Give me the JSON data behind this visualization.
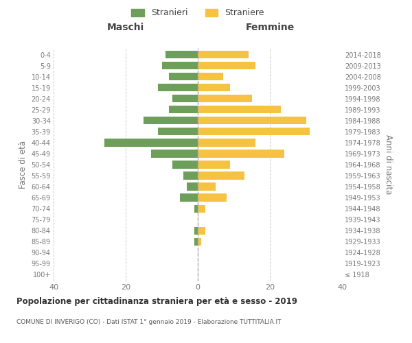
{
  "age_groups": [
    "100+",
    "95-99",
    "90-94",
    "85-89",
    "80-84",
    "75-79",
    "70-74",
    "65-69",
    "60-64",
    "55-59",
    "50-54",
    "45-49",
    "40-44",
    "35-39",
    "30-34",
    "25-29",
    "20-24",
    "15-19",
    "10-14",
    "5-9",
    "0-4"
  ],
  "birth_years": [
    "≤ 1918",
    "1919-1923",
    "1924-1928",
    "1929-1933",
    "1934-1938",
    "1939-1943",
    "1944-1948",
    "1949-1953",
    "1954-1958",
    "1959-1963",
    "1964-1968",
    "1969-1973",
    "1974-1978",
    "1979-1983",
    "1984-1988",
    "1989-1993",
    "1994-1998",
    "1999-2003",
    "2004-2008",
    "2009-2013",
    "2014-2018"
  ],
  "maschi": [
    0,
    0,
    0,
    1,
    1,
    0,
    1,
    5,
    3,
    4,
    7,
    13,
    26,
    11,
    15,
    8,
    7,
    11,
    8,
    10,
    9
  ],
  "femmine": [
    0,
    0,
    0,
    1,
    2,
    0,
    2,
    8,
    5,
    13,
    9,
    24,
    16,
    31,
    30,
    23,
    15,
    9,
    7,
    16,
    14
  ],
  "color_maschi": "#6d9e5a",
  "color_femmine": "#f5c242",
  "background_color": "#ffffff",
  "grid_color": "#cccccc",
  "title": "Popolazione per cittadinanza straniera per età e sesso - 2019",
  "subtitle": "COMUNE DI INVERIGO (CO) - Dati ISTAT 1° gennaio 2019 - Elaborazione TUTTITALIA.IT",
  "xlabel_maschi": "Maschi",
  "xlabel_femmine": "Femmine",
  "ylabel_left": "Fasce di età",
  "ylabel_right": "Anni di nascita",
  "legend_maschi": "Stranieri",
  "legend_femmine": "Straniere",
  "xlim": 40,
  "label_color": "#777777",
  "grid_color_center": "#aaaaaa"
}
